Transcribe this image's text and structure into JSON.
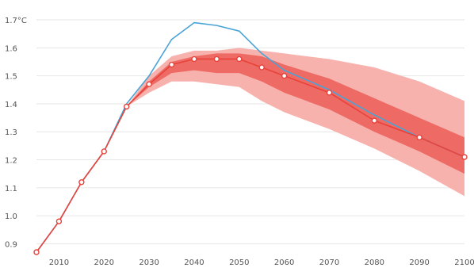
{
  "chart_data": {
    "type": "line",
    "y_unit": "°C",
    "xlim": [
      2005,
      2100
    ],
    "ylim": [
      0.87,
      1.72
    ],
    "x_ticks": [
      2010,
      2020,
      2030,
      2040,
      2050,
      2060,
      2070,
      2080,
      2090,
      2100
    ],
    "y_ticks": [
      0.9,
      1.0,
      1.1,
      1.2,
      1.3,
      1.4,
      1.5,
      1.6,
      1.7
    ],
    "grid": true,
    "series": [
      {
        "color": "#e8423a",
        "markers": true,
        "x": [
          2005,
          2010,
          2015,
          2020,
          2025,
          2030,
          2035,
          2040,
          2045,
          2050,
          2055,
          2060,
          2070,
          2080,
          2090,
          2100
        ],
        "y": [
          0.87,
          0.98,
          1.12,
          1.23,
          1.39,
          1.47,
          1.54,
          1.56,
          1.56,
          1.56,
          1.53,
          1.5,
          1.44,
          1.34,
          1.28,
          1.21
        ]
      },
      {
        "color": "#4aa3d6",
        "markers": false,
        "x": [
          2005,
          2010,
          2015,
          2020,
          2025,
          2030,
          2035,
          2040,
          2045,
          2050,
          2055,
          2060,
          2070,
          2080,
          2090,
          2100
        ],
        "y": [
          0.87,
          0.98,
          1.12,
          1.23,
          1.4,
          1.5,
          1.63,
          1.69,
          1.68,
          1.66,
          1.58,
          1.52,
          1.45,
          1.36,
          1.28,
          1.21
        ]
      }
    ],
    "bands": [
      {
        "color": "#f7b2ad",
        "x": [
          2025,
          2030,
          2035,
          2040,
          2045,
          2050,
          2055,
          2060,
          2070,
          2080,
          2090,
          2100
        ],
        "lower": [
          1.39,
          1.44,
          1.48,
          1.48,
          1.47,
          1.46,
          1.41,
          1.37,
          1.31,
          1.24,
          1.16,
          1.07
        ],
        "upper": [
          1.39,
          1.5,
          1.57,
          1.59,
          1.59,
          1.6,
          1.59,
          1.58,
          1.56,
          1.53,
          1.48,
          1.41
        ]
      },
      {
        "color": "#ee6a64",
        "x": [
          2025,
          2030,
          2035,
          2040,
          2045,
          2050,
          2055,
          2060,
          2070,
          2080,
          2090,
          2100
        ],
        "lower": [
          1.39,
          1.46,
          1.51,
          1.52,
          1.51,
          1.51,
          1.48,
          1.44,
          1.38,
          1.3,
          1.23,
          1.15
        ],
        "upper": [
          1.39,
          1.48,
          1.55,
          1.57,
          1.58,
          1.58,
          1.57,
          1.54,
          1.49,
          1.42,
          1.35,
          1.28
        ]
      }
    ]
  }
}
